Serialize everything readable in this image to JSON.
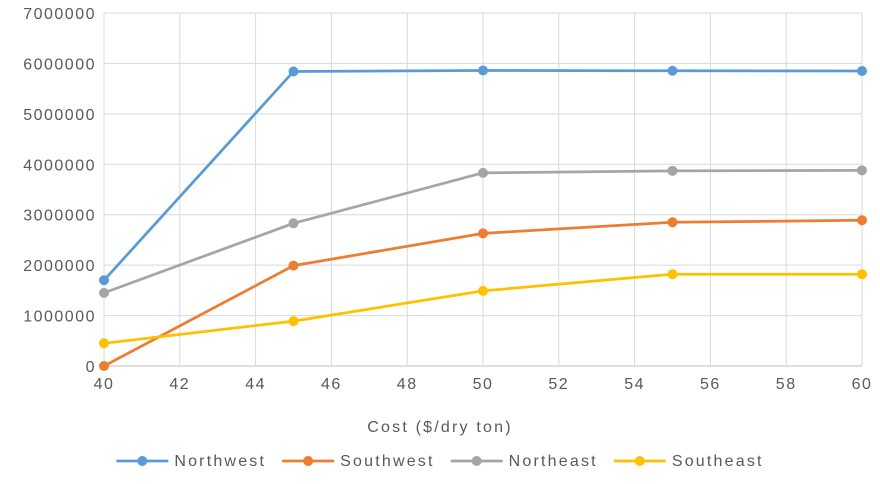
{
  "chart_data": {
    "type": "line",
    "title": "",
    "xlabel": "Cost ($/dry ton)",
    "ylabel": "",
    "x_ticks": [
      "40",
      "42",
      "44",
      "46",
      "48",
      "50",
      "52",
      "54",
      "56",
      "58",
      "60"
    ],
    "y_ticks": [
      "0",
      "1000000",
      "2000000",
      "3000000",
      "4000000",
      "5000000",
      "6000000",
      "7000000"
    ],
    "xlim": [
      40,
      60
    ],
    "ylim": [
      0,
      7000000
    ],
    "grid": true,
    "legend_position": "bottom",
    "x": [
      40,
      45,
      50,
      55,
      60
    ],
    "series": [
      {
        "name": "Northwest",
        "color": "#5B9BD5",
        "values": [
          1700000,
          5840000,
          5860000,
          5855000,
          5850000
        ]
      },
      {
        "name": "Southwest",
        "color": "#ED7D31",
        "values": [
          0,
          1990000,
          2630000,
          2850000,
          2890000
        ]
      },
      {
        "name": "Northeast",
        "color": "#A5A5A5",
        "values": [
          1450000,
          2830000,
          3830000,
          3870000,
          3880000
        ]
      },
      {
        "name": "Southeast",
        "color": "#FFC000",
        "values": [
          450000,
          890000,
          1490000,
          1820000,
          1820000
        ]
      }
    ]
  }
}
